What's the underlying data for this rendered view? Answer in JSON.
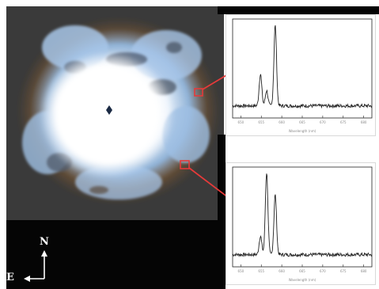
{
  "figure": {
    "image": {
      "subject": "nebula-color-image",
      "background_color": "#3a3a3a",
      "outer_black_color": "#050505",
      "core_color": "#ffffff",
      "blue_color": "#8fb6df",
      "orange_color": "#c9893f"
    },
    "callouts": [
      {
        "name": "upper-callout",
        "box_color": "#e53a3a",
        "line_color": "#e53a3a"
      },
      {
        "name": "lower-callout",
        "box_color": "#e53a3a",
        "line_color": "#e53a3a"
      }
    ],
    "spectra": [
      {
        "name": "upper-spectrum",
        "x_label": "Wavelength (nm)",
        "tick_labels": [
          "650",
          "655",
          "660",
          "665",
          "670",
          "675",
          "680"
        ],
        "peaks": [
          {
            "wavelength": 654.8,
            "height": 0.38
          },
          {
            "wavelength": 656.3,
            "height": 0.18
          },
          {
            "wavelength": 658.4,
            "height": 0.95
          }
        ]
      },
      {
        "name": "lower-spectrum",
        "x_label": "Wavelength (nm)",
        "tick_labels": [
          "650",
          "655",
          "660",
          "665",
          "670",
          "675",
          "680"
        ],
        "peaks": [
          {
            "wavelength": 654.8,
            "height": 0.22
          },
          {
            "wavelength": 656.3,
            "height": 0.96
          },
          {
            "wavelength": 658.4,
            "height": 0.7
          }
        ]
      }
    ],
    "compass": {
      "north_label": "N",
      "east_label": "E",
      "color": "#ffffff"
    }
  }
}
